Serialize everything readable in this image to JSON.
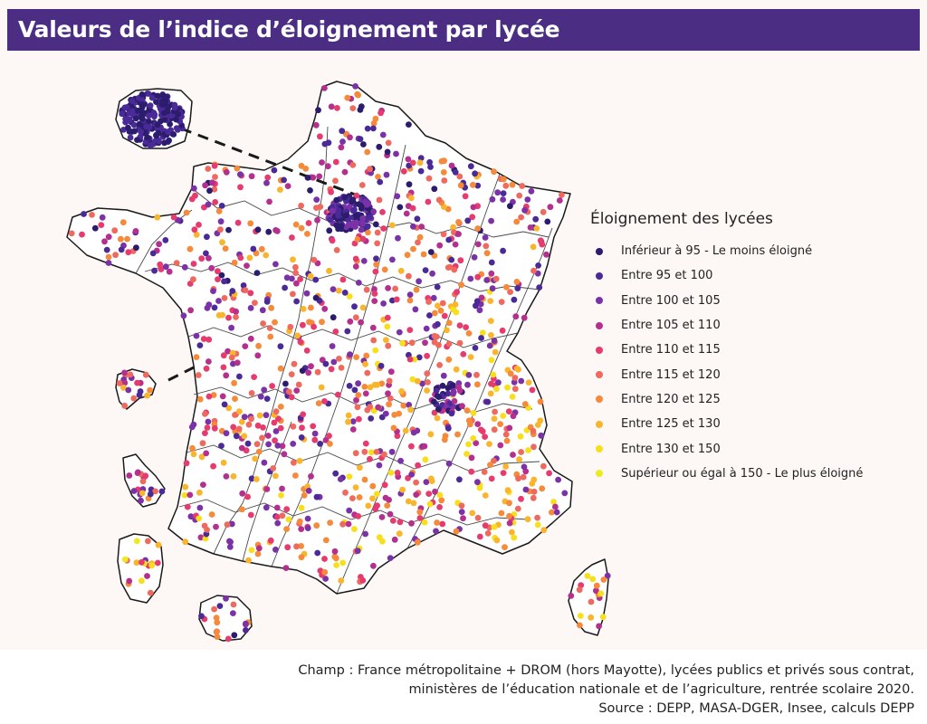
{
  "title": "Valeurs de l’indice d’éloignement par lycée",
  "legend": {
    "title": "Éloignement des lycées",
    "items": [
      {
        "label": "Inférieur à 95 - Le moins éloigné",
        "color": "#2c1c6e"
      },
      {
        "label": "Entre 95 et 100",
        "color": "#4a2a96"
      },
      {
        "label": "Entre 100 et 105",
        "color": "#7a32a6"
      },
      {
        "label": "Entre 105 et 110",
        "color": "#b3308f"
      },
      {
        "label": "Entre 110 et 115",
        "color": "#e63b6f"
      },
      {
        "label": "Entre 115 et 120",
        "color": "#ee6a5e"
      },
      {
        "label": "Entre 120 et 125",
        "color": "#f48a3a"
      },
      {
        "label": "Entre 125 et 130",
        "color": "#f9b52c"
      },
      {
        "label": "Entre 130 et 150",
        "color": "#f7df1c"
      },
      {
        "label": "Supérieur ou égal à 150 - Le plus éloigné",
        "color": "#eeea20"
      }
    ]
  },
  "footer": {
    "line1": "Champ : France métropolitaine + DROM (hors Mayotte), lycées publics et privés sous contrat,",
    "line2": "ministères de l’éducation nationale et de l’agriculture, rentrée scolaire 2020.",
    "line3": "Source : DEPP, MASA-DGER, Insee, calculs DEPP"
  }
}
